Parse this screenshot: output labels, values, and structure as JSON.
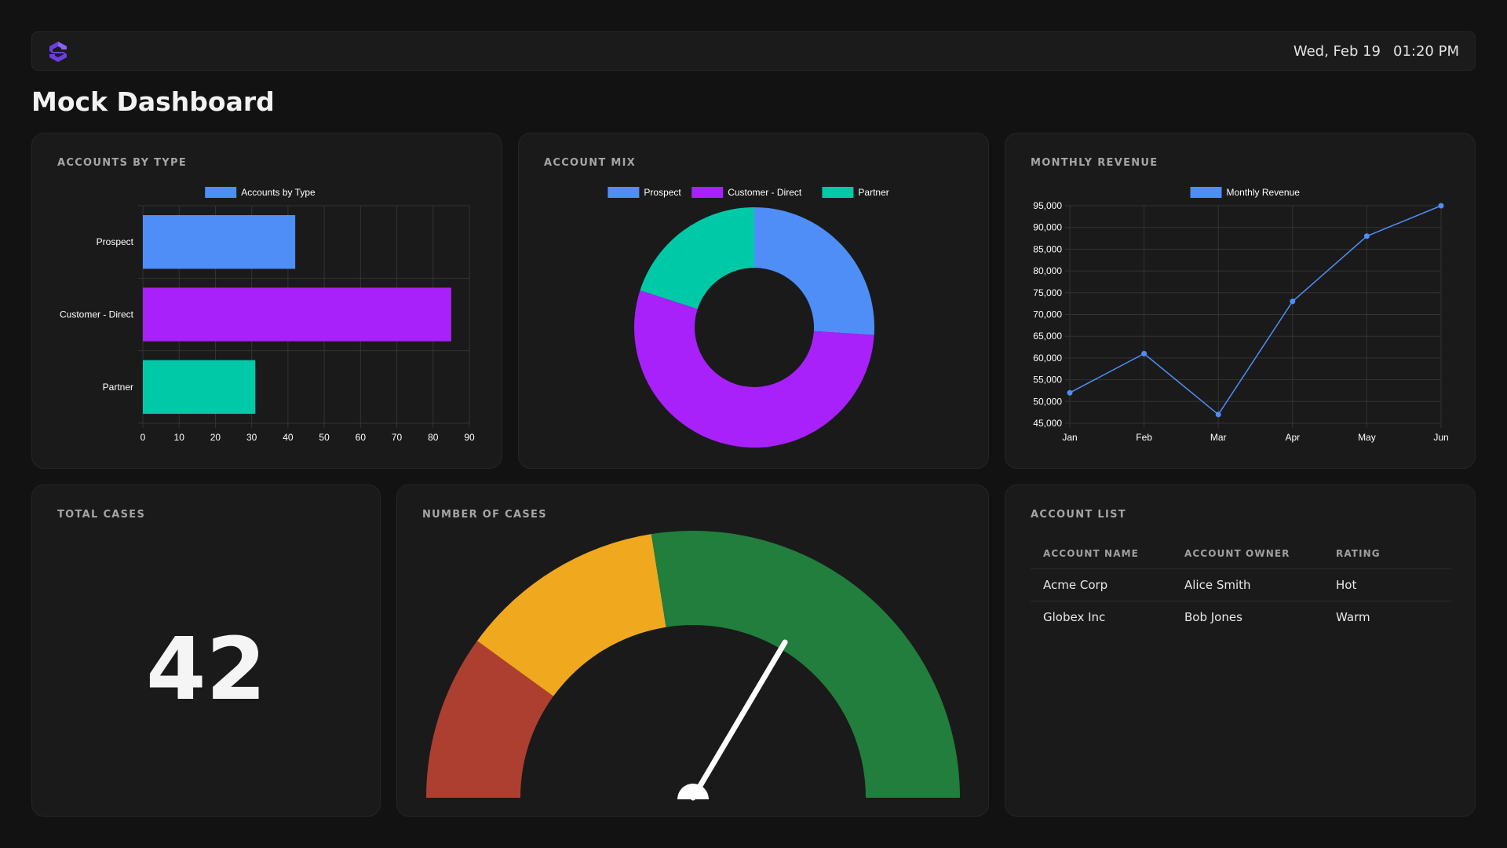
{
  "header": {
    "date": "Wed, Feb 19",
    "time": "01:20 PM",
    "logo_icon": "brand-logo-icon"
  },
  "page": {
    "title": "Mock Dashboard"
  },
  "cards": {
    "accounts_by_type": "ACCOUNTS BY TYPE",
    "account_mix": "ACCOUNT MIX",
    "monthly_revenue": "MONTHLY REVENUE",
    "total_cases": "TOTAL CASES",
    "number_of_cases": "NUMBER OF CASES",
    "account_list": "ACCOUNT LIST"
  },
  "colors": {
    "blue": "#4f8ef7",
    "purple": "#a821fb",
    "teal": "#00c9a7",
    "red": "#ad3f31",
    "amber": "#f0a81f",
    "green": "#217e3c"
  },
  "chart_data": [
    {
      "id": "accounts_by_type",
      "type": "bar",
      "orientation": "horizontal",
      "categories": [
        "Prospect",
        "Customer - Direct",
        "Partner"
      ],
      "series": [
        {
          "name": "Accounts by Type",
          "values": [
            42,
            85,
            31
          ]
        }
      ],
      "colors": [
        "#4f8ef7",
        "#a821fb",
        "#00c9a7"
      ],
      "xlim": [
        0,
        90
      ],
      "xticks": [
        0,
        10,
        20,
        30,
        40,
        50,
        60,
        70,
        80,
        90
      ],
      "legend": "top",
      "grid": true
    },
    {
      "id": "account_mix",
      "type": "pie",
      "style": "doughnut",
      "labels": [
        "Prospect",
        "Customer - Direct",
        "Partner"
      ],
      "values": [
        26,
        54,
        20
      ],
      "colors": [
        "#4f8ef7",
        "#a821fb",
        "#00c9a7"
      ],
      "legend": "top"
    },
    {
      "id": "monthly_revenue",
      "type": "line",
      "x": [
        "Jan",
        "Feb",
        "Mar",
        "Apr",
        "May",
        "Jun"
      ],
      "series": [
        {
          "name": "Monthly Revenue",
          "values": [
            52000,
            61000,
            47000,
            73000,
            88000,
            95000
          ]
        }
      ],
      "color": "#4f8ef7",
      "ylim": [
        45000,
        95000
      ],
      "yticks": [
        "45,000",
        "50,000",
        "55,000",
        "60,000",
        "65,000",
        "70,000",
        "75,000",
        "80,000",
        "85,000",
        "90,000",
        "95,000"
      ],
      "legend": "top",
      "grid": true
    }
  ],
  "total_cases": {
    "value": "42"
  },
  "gauge": {
    "min": 0,
    "max": 100,
    "value": 67,
    "segments": [
      {
        "to": 0.2,
        "color": "#ad3f31"
      },
      {
        "to": 0.45,
        "color": "#f0a81f"
      },
      {
        "to": 1.0,
        "color": "#217e3c"
      }
    ]
  },
  "account_list": {
    "headers": [
      "ACCOUNT NAME",
      "ACCOUNT OWNER",
      "RATING"
    ],
    "rows": [
      [
        "Acme Corp",
        "Alice Smith",
        "Hot"
      ],
      [
        "Globex Inc",
        "Bob Jones",
        "Warm"
      ]
    ]
  }
}
